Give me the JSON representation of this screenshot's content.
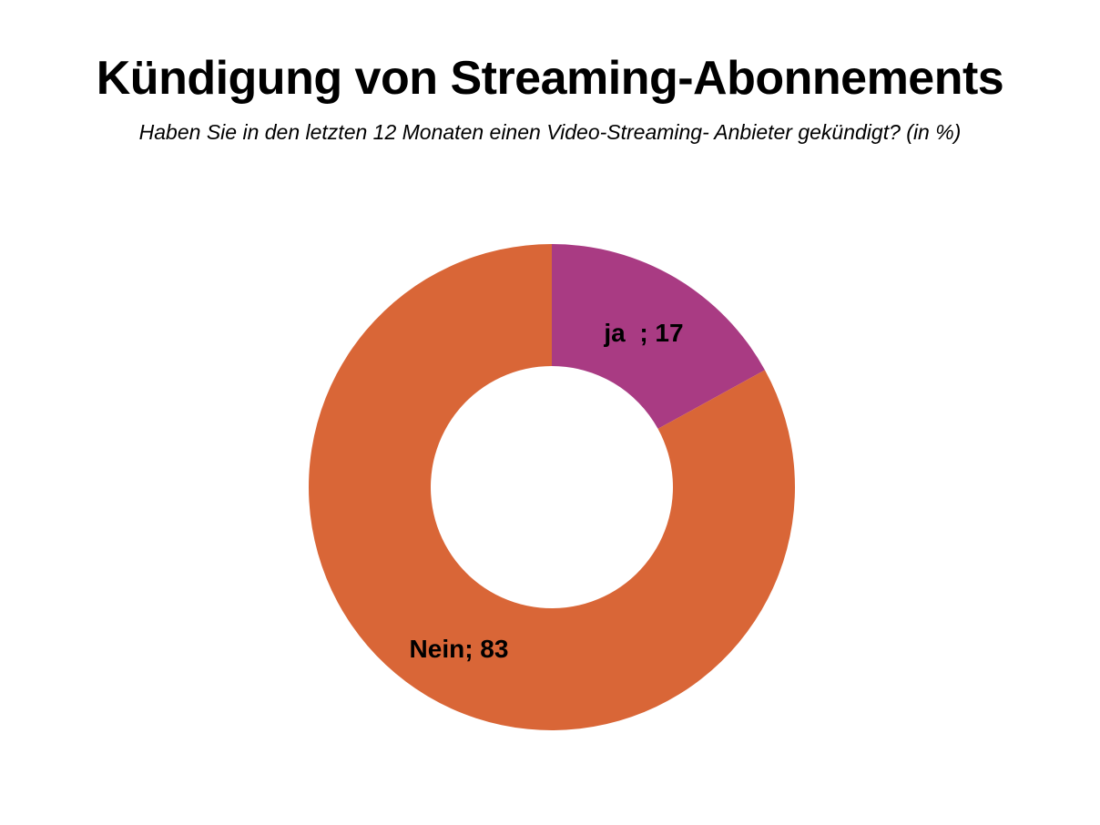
{
  "chart_data": {
    "type": "pie",
    "variant": "donut",
    "title": "Kündigung von Streaming-Abonnements",
    "subtitle": "Haben Sie in den letzten 12 Monaten einen Video-Streaming- Anbieter gekündigt? (in %)",
    "slices": [
      {
        "label": "ja  ; 17",
        "name": "ja",
        "value": 17,
        "color": "#A93B83"
      },
      {
        "label": "Nein; 83",
        "name": "Nein",
        "value": 83,
        "color": "#D96637"
      }
    ],
    "legend": "none"
  }
}
